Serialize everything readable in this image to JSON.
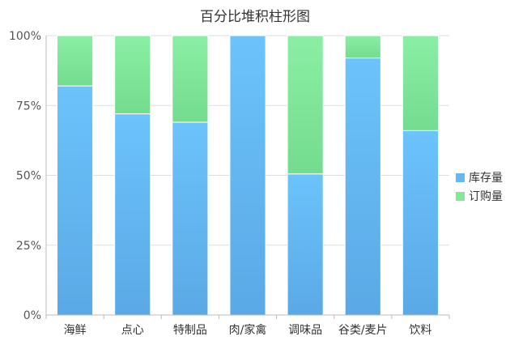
{
  "chart_data": {
    "type": "bar",
    "stacked": true,
    "percent": true,
    "title": "百分比堆积柱形图",
    "categories": [
      "海鲜",
      "点心",
      "特制品",
      "肉/家禽",
      "调味品",
      "谷类/麦片",
      "饮料"
    ],
    "series": [
      {
        "name": "库存量",
        "values": [
          82,
          72,
          69,
          100,
          50.5,
          92,
          66
        ]
      },
      {
        "name": "订购量",
        "values": [
          18,
          28,
          31,
          0,
          49.5,
          8,
          34
        ]
      }
    ],
    "yticks": [
      "0%",
      "25%",
      "50%",
      "75%",
      "100%"
    ],
    "ylim": [
      0,
      100
    ],
    "xlabel": "",
    "ylabel": "",
    "grid": true,
    "legend_position": "right",
    "colors": [
      "#67b8f0",
      "#82e89a"
    ]
  }
}
